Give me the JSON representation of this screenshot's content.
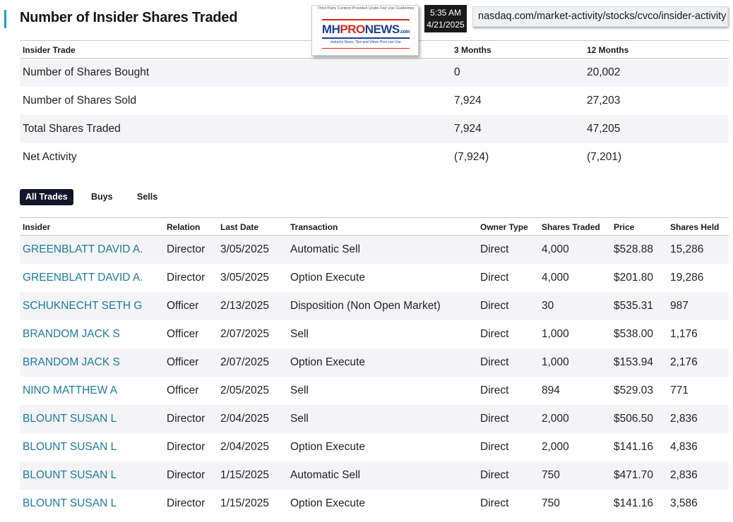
{
  "page_title": "Number of Insider Shares Traded",
  "overlay": {
    "watermark_top": "Third Party Content Provided Under Fair Use Guidelines",
    "logo_mh": "MH",
    "logo_pro": "PRO",
    "logo_news": "NEWS",
    "logo_com": ".com",
    "logo_tagline": "Industry News, Tips and Views Pros can Use",
    "time": "5:35 AM",
    "date": "4/21/2025",
    "url": "nasdaq.com/market-activity/stocks/cvco/insider-activity"
  },
  "summary": {
    "headers": {
      "insider_trade": "Insider Trade",
      "three_months": "3 Months",
      "twelve_months": "12 Months"
    },
    "rows": [
      {
        "label": "Number of Shares Bought",
        "m3": "0",
        "m12": "20,002"
      },
      {
        "label": "Number of Shares Sold",
        "m3": "7,924",
        "m12": "27,203"
      },
      {
        "label": "Total Shares Traded",
        "m3": "7,924",
        "m12": "47,205"
      },
      {
        "label": "Net Activity",
        "m3": "(7,924)",
        "m12": "(7,201)"
      }
    ]
  },
  "tabs": {
    "all": "All Trades",
    "buys": "Buys",
    "sells": "Sells",
    "active": "All Trades"
  },
  "trades": {
    "headers": {
      "insider": "Insider",
      "relation": "Relation",
      "last_date": "Last Date",
      "transaction": "Transaction",
      "owner_type": "Owner Type",
      "shares_traded": "Shares Traded",
      "price": "Price",
      "shares_held": "Shares Held"
    },
    "rows": [
      {
        "insider": "GREENBLATT DAVID A.",
        "relation": "Director",
        "date": "3/05/2025",
        "transaction": "Automatic Sell",
        "owner": "Direct",
        "shares": "4,000",
        "price": "$528.88",
        "held": "15,286"
      },
      {
        "insider": "GREENBLATT DAVID A.",
        "relation": "Director",
        "date": "3/05/2025",
        "transaction": "Option Execute",
        "owner": "Direct",
        "shares": "4,000",
        "price": "$201.80",
        "held": "19,286"
      },
      {
        "insider": "SCHUKNECHT SETH G",
        "relation": "Officer",
        "date": "2/13/2025",
        "transaction": "Disposition (Non Open Market)",
        "owner": "Direct",
        "shares": "30",
        "price": "$535.31",
        "held": "987"
      },
      {
        "insider": "BRANDOM JACK S",
        "relation": "Officer",
        "date": "2/07/2025",
        "transaction": "Sell",
        "owner": "Direct",
        "shares": "1,000",
        "price": "$538.00",
        "held": "1,176"
      },
      {
        "insider": "BRANDOM JACK S",
        "relation": "Officer",
        "date": "2/07/2025",
        "transaction": "Option Execute",
        "owner": "Direct",
        "shares": "1,000",
        "price": "$153.94",
        "held": "2,176"
      },
      {
        "insider": "NINO MATTHEW A",
        "relation": "Officer",
        "date": "2/05/2025",
        "transaction": "Sell",
        "owner": "Direct",
        "shares": "894",
        "price": "$529.03",
        "held": "771"
      },
      {
        "insider": "BLOUNT SUSAN L",
        "relation": "Director",
        "date": "2/04/2025",
        "transaction": "Sell",
        "owner": "Direct",
        "shares": "2,000",
        "price": "$506.50",
        "held": "2,836"
      },
      {
        "insider": "BLOUNT SUSAN L",
        "relation": "Director",
        "date": "2/04/2025",
        "transaction": "Option Execute",
        "owner": "Direct",
        "shares": "2,000",
        "price": "$141.16",
        "held": "4,836"
      },
      {
        "insider": "BLOUNT SUSAN L",
        "relation": "Director",
        "date": "1/15/2025",
        "transaction": "Automatic Sell",
        "owner": "Direct",
        "shares": "750",
        "price": "$471.70",
        "held": "2,836"
      },
      {
        "insider": "BLOUNT SUSAN L",
        "relation": "Director",
        "date": "1/15/2025",
        "transaction": "Option Execute",
        "owner": "Direct",
        "shares": "750",
        "price": "$141.16",
        "held": "3,586"
      }
    ]
  },
  "colors": {
    "accent": "#1f9fc4",
    "link": "#1c7aa3",
    "tab_active_bg": "#14142a",
    "row_shade": "#f4f4f6"
  }
}
